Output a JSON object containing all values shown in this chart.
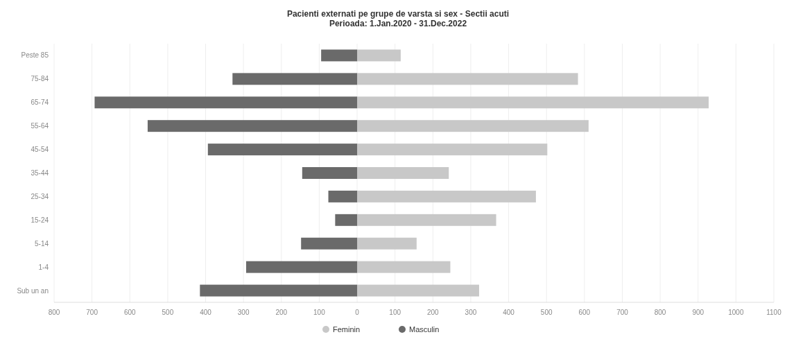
{
  "chart_data": {
    "type": "bar",
    "orientation": "horizontal",
    "stacked": true,
    "title": "Pacienti externati pe grupe de varsta si sex - Sectii acuti",
    "subtitle": "Perioada: 1.Jan.2020 - 31.Dec.2022",
    "categories": [
      "Peste 85",
      "75-84",
      "65-74",
      "55-64",
      "45-54",
      "35-44",
      "25-34",
      "15-24",
      "5-14",
      "1-4",
      "Sub un an"
    ],
    "series": [
      {
        "name": "Feminin",
        "color": "#c8c8c8",
        "values": [
          115,
          583,
          928,
          611,
          502,
          242,
          472,
          367,
          157,
          246,
          322
        ]
      },
      {
        "name": "Masculin",
        "color": "#6a6a6a",
        "values": [
          -95,
          -329,
          -693,
          -553,
          -394,
          -145,
          -76,
          -58,
          -148,
          -293,
          -415
        ]
      }
    ],
    "xlim": [
      -800,
      1100
    ],
    "xticks": [
      {
        "value": -800,
        "label": "800"
      },
      {
        "value": -700,
        "label": "700"
      },
      {
        "value": -600,
        "label": "600"
      },
      {
        "value": -500,
        "label": "500"
      },
      {
        "value": -400,
        "label": "400"
      },
      {
        "value": -300,
        "label": "300"
      },
      {
        "value": -200,
        "label": "200"
      },
      {
        "value": -100,
        "label": "100"
      },
      0,
      100,
      200,
      300,
      400,
      500,
      600,
      700,
      800,
      900,
      1000,
      1100
    ],
    "grid": "x",
    "legend": "bottom"
  }
}
